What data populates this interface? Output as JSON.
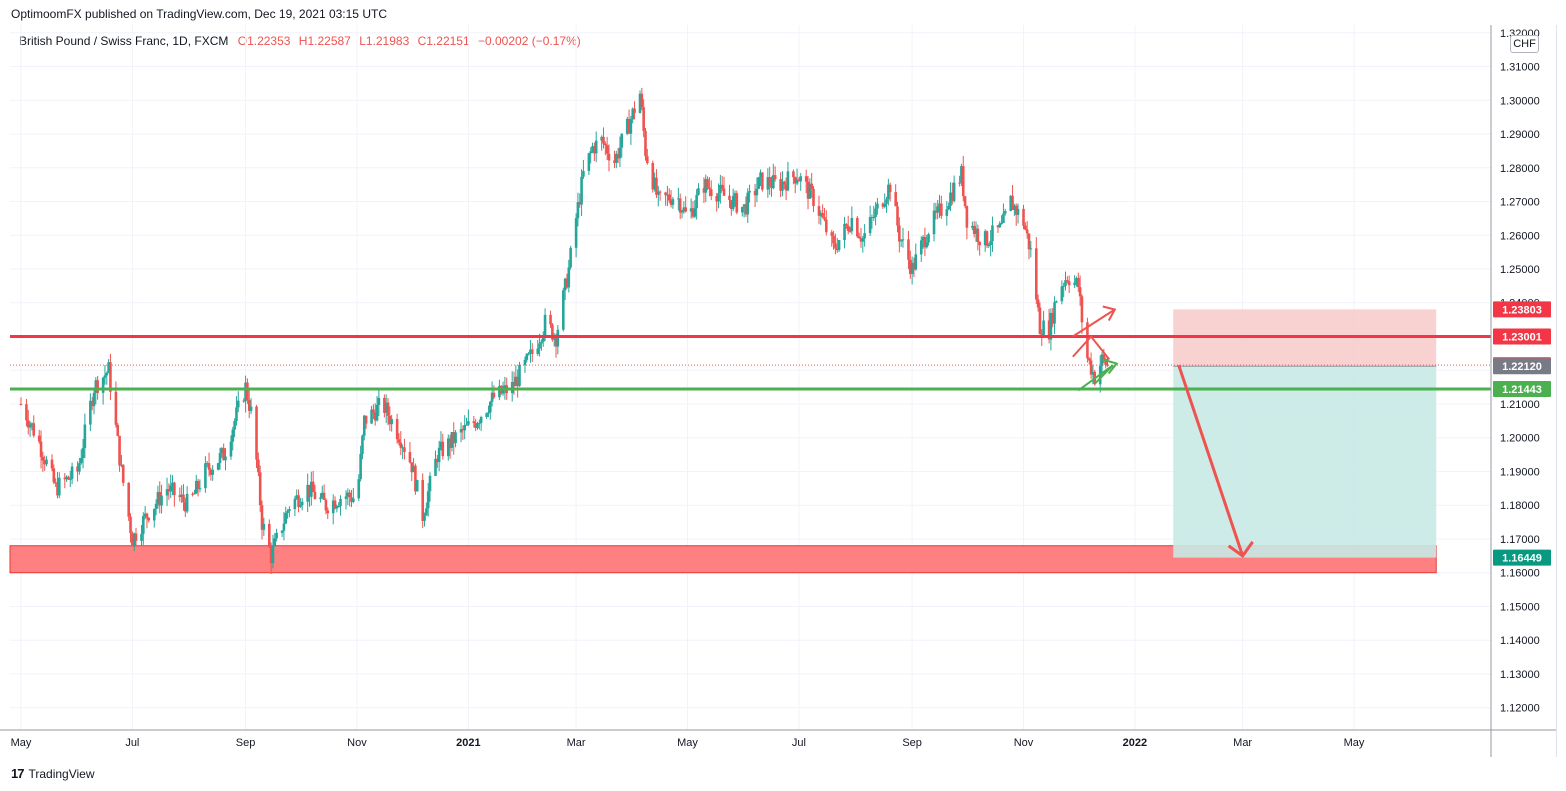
{
  "publisher": "OptimoomFX published on TradingView.com, Dec 19, 2021 03:15 UTC",
  "legend": {
    "symbol": "British Pound / Swiss Franc, 1D, FXCM",
    "open": "O1.22353",
    "high": "H1.22587",
    "low": "L1.21983",
    "close": "C1.22151",
    "change": "−0.00202 (−0.17%)"
  },
  "currency_badge": "CHF",
  "footer": {
    "logo_text": "17",
    "brand": "TradingView"
  },
  "colors": {
    "up": "#26a69a",
    "down": "#ef5350",
    "resistance_line": "#f23645",
    "support_line": "#4caf50",
    "stop_zone": "#f7c9c9",
    "target_zone": "#c8e9e4",
    "demand_box": "#ff8080"
  },
  "chart_data": {
    "type": "candlestick",
    "symbol": "GBPCHF",
    "timeframe": "1D",
    "ylim": [
      1.1134,
      1.3223
    ],
    "y_ticks": [
      "1.12000",
      "1.13000",
      "1.14000",
      "1.15000",
      "1.16000",
      "1.17000",
      "1.18000",
      "1.19000",
      "1.20000",
      "1.21000",
      "1.22000",
      "1.23000",
      "1.24000",
      "1.25000",
      "1.26000",
      "1.27000",
      "1.28000",
      "1.29000",
      "1.30000",
      "1.31000",
      "1.32000"
    ],
    "x_ticks": [
      "May",
      "Jul",
      "Sep",
      "Nov",
      "2021",
      "Mar",
      "May",
      "Jul",
      "Sep",
      "Nov",
      "2022",
      "Mar",
      "May"
    ],
    "x_tick_bold": [
      false,
      false,
      false,
      false,
      true,
      false,
      false,
      false,
      false,
      false,
      true,
      false,
      false
    ],
    "price_anchors": [
      [
        "2020-05-01",
        1.21
      ],
      [
        "2020-05-10",
        1.2
      ],
      [
        "2020-05-20",
        1.185
      ],
      [
        "2020-06-01",
        1.19
      ],
      [
        "2020-06-10",
        1.215
      ],
      [
        "2020-06-18",
        1.22
      ],
      [
        "2020-06-25",
        1.19
      ],
      [
        "2020-07-01",
        1.17
      ],
      [
        "2020-07-10",
        1.178
      ],
      [
        "2020-07-20",
        1.185
      ],
      [
        "2020-08-01",
        1.18
      ],
      [
        "2020-08-10",
        1.19
      ],
      [
        "2020-08-20",
        1.195
      ],
      [
        "2020-09-01",
        1.215
      ],
      [
        "2020-09-05",
        1.205
      ],
      [
        "2020-09-10",
        1.175
      ],
      [
        "2020-09-15",
        1.165
      ],
      [
        "2020-09-25",
        1.18
      ],
      [
        "2020-10-05",
        1.185
      ],
      [
        "2020-10-15",
        1.18
      ],
      [
        "2020-10-25",
        1.183
      ],
      [
        "2020-11-01",
        1.182
      ],
      [
        "2020-11-05",
        1.205
      ],
      [
        "2020-11-15",
        1.21
      ],
      [
        "2020-11-25",
        1.2
      ],
      [
        "2020-12-01",
        1.192
      ],
      [
        "2020-12-07",
        1.177
      ],
      [
        "2020-12-15",
        1.195
      ],
      [
        "2020-12-25",
        1.2
      ],
      [
        "2021-01-05",
        1.205
      ],
      [
        "2021-01-15",
        1.212
      ],
      [
        "2021-01-25",
        1.215
      ],
      [
        "2021-02-05",
        1.225
      ],
      [
        "2021-02-12",
        1.234
      ],
      [
        "2021-02-18",
        1.23
      ],
      [
        "2021-02-25",
        1.25
      ],
      [
        "2021-03-01",
        1.265
      ],
      [
        "2021-03-05",
        1.278
      ],
      [
        "2021-03-10",
        1.286
      ],
      [
        "2021-03-15",
        1.288
      ],
      [
        "2021-03-22",
        1.282
      ],
      [
        "2021-03-30",
        1.293
      ],
      [
        "2021-04-05",
        1.302
      ],
      [
        "2021-04-08",
        1.285
      ],
      [
        "2021-04-15",
        1.27
      ],
      [
        "2021-04-25",
        1.272
      ],
      [
        "2021-05-01",
        1.265
      ],
      [
        "2021-05-10",
        1.275
      ],
      [
        "2021-05-20",
        1.272
      ],
      [
        "2021-06-01",
        1.268
      ],
      [
        "2021-06-10",
        1.276
      ],
      [
        "2021-06-20",
        1.275
      ],
      [
        "2021-06-30",
        1.278
      ],
      [
        "2021-07-10",
        1.27
      ],
      [
        "2021-07-20",
        1.256
      ],
      [
        "2021-07-30",
        1.265
      ],
      [
        "2021-08-05",
        1.259
      ],
      [
        "2021-08-15",
        1.27
      ],
      [
        "2021-08-20",
        1.275
      ],
      [
        "2021-08-25",
        1.26
      ],
      [
        "2021-09-01",
        1.25
      ],
      [
        "2021-09-10",
        1.262
      ],
      [
        "2021-09-20",
        1.27
      ],
      [
        "2021-09-28",
        1.278
      ],
      [
        "2021-10-01",
        1.265
      ],
      [
        "2021-10-10",
        1.258
      ],
      [
        "2021-10-20",
        1.262
      ],
      [
        "2021-10-25",
        1.27
      ],
      [
        "2021-11-01",
        1.264
      ],
      [
        "2021-11-05",
        1.255
      ],
      [
        "2021-11-10",
        1.233
      ],
      [
        "2021-11-15",
        1.232
      ],
      [
        "2021-11-20",
        1.244
      ],
      [
        "2021-11-25",
        1.248
      ],
      [
        "2021-12-01",
        1.245
      ],
      [
        "2021-12-05",
        1.225
      ],
      [
        "2021-12-10",
        1.218
      ],
      [
        "2021-12-14",
        1.223
      ],
      [
        "2021-12-17",
        1.2215
      ]
    ],
    "horizontal_levels": [
      {
        "label": "1.23001",
        "value": 1.23001,
        "color": "#f23645"
      },
      {
        "label": "1.21443",
        "value": 1.21443,
        "color": "#4caf50"
      }
    ],
    "price_labels": [
      {
        "label": "1.23803",
        "value": 1.23803,
        "color": "#f23645"
      },
      {
        "label": "1.23001",
        "value": 1.23001,
        "color": "#f23645"
      },
      {
        "label": "1.22151",
        "value": 1.22151,
        "color": "#ef5350"
      },
      {
        "label": "1.22120",
        "value": 1.2212,
        "color": "#787b86"
      },
      {
        "label": "1.21443",
        "value": 1.21443,
        "color": "#4caf50"
      },
      {
        "label": "1.16449",
        "value": 1.16449,
        "color": "#089981"
      }
    ],
    "position": {
      "type": "short",
      "entry": 1.2212,
      "stop": 1.23803,
      "target": 1.16449,
      "start": "2022-01-22",
      "end": "2022-06-15"
    },
    "demand_zone": {
      "from": 1.16,
      "to": 1.168,
      "start": "2020-04-25",
      "end": "2022-06-15"
    }
  }
}
